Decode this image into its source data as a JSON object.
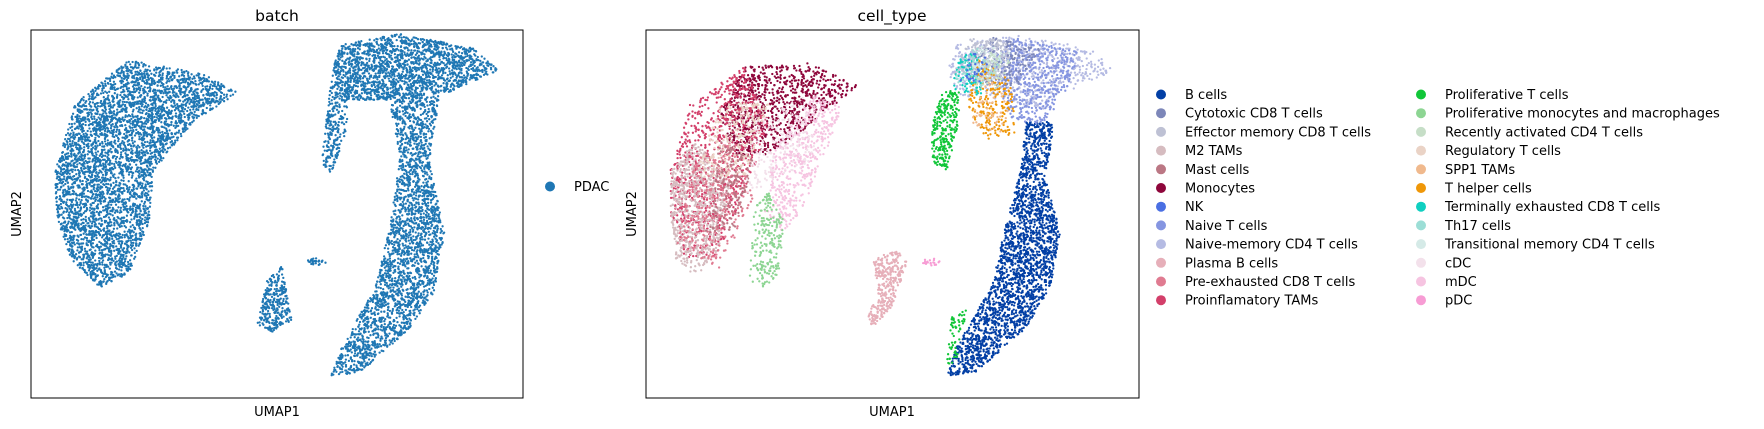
{
  "chart_data": [
    {
      "type": "scatter",
      "title": "batch",
      "xlabel": "UMAP1",
      "ylabel": "UMAP2",
      "xlim": [
        0,
        100
      ],
      "ylim": [
        0,
        100
      ],
      "grid": false,
      "ticks": "none",
      "legend_position": "right",
      "categories": [
        {
          "name": "PDAC",
          "color": "#1f77b4"
        }
      ],
      "regions": [
        {
          "category": "PDAC",
          "shape": "polygon",
          "n": 4200,
          "points": [
            [
              5,
              62
            ],
            [
              9,
              80
            ],
            [
              20,
              92
            ],
            [
              35,
              88
            ],
            [
              42,
              83
            ],
            [
              33,
              75
            ],
            [
              25,
              62
            ],
            [
              24,
              48
            ],
            [
              20,
              34
            ],
            [
              14,
              30
            ],
            [
              8,
              38
            ],
            [
              5,
              50
            ]
          ]
        },
        {
          "category": "PDAC",
          "shape": "polygon",
          "n": 1800,
          "points": [
            [
              61,
              88
            ],
            [
              63,
              96
            ],
            [
              75,
              99
            ],
            [
              90,
              95
            ],
            [
              95,
              89
            ],
            [
              85,
              83
            ],
            [
              72,
              81
            ],
            [
              64,
              81
            ]
          ]
        },
        {
          "category": "PDAC",
          "shape": "polygon",
          "n": 2500,
          "points": [
            [
              77,
              83
            ],
            [
              83,
              82
            ],
            [
              81,
              64
            ],
            [
              84,
              45
            ],
            [
              82,
              29
            ],
            [
              77,
              19
            ],
            [
              67,
              7
            ],
            [
              61,
              6
            ],
            [
              63,
              14
            ],
            [
              70,
              30
            ],
            [
              73,
              47
            ],
            [
              75,
              65
            ],
            [
              73,
              80
            ]
          ]
        },
        {
          "category": "PDAC",
          "shape": "polygon",
          "n": 260,
          "points": [
            [
              61,
              86
            ],
            [
              65,
              86
            ],
            [
              64,
              72
            ],
            [
              61,
              61
            ],
            [
              59,
              64
            ]
          ]
        },
        {
          "category": "PDAC",
          "shape": "polygon",
          "n": 300,
          "points": [
            [
              51,
              36
            ],
            [
              53,
              21
            ],
            [
              49,
              18
            ],
            [
              46,
              20
            ],
            [
              48,
              32
            ]
          ]
        },
        {
          "category": "PDAC",
          "shape": "ellipse",
          "n": 25,
          "cx": 58,
          "cy": 37,
          "rx": 2,
          "ry": 1
        }
      ]
    },
    {
      "type": "scatter",
      "title": "cell_type",
      "xlabel": "UMAP1",
      "ylabel": "UMAP2",
      "xlim": [
        0,
        100
      ],
      "ylim": [
        0,
        100
      ],
      "grid": false,
      "ticks": "none",
      "legend_position": "right",
      "legend_columns": 2,
      "categories": [
        {
          "name": "B cells",
          "color": "#023fa5"
        },
        {
          "name": "Cytotoxic CD8 T cells",
          "color": "#7d87b9"
        },
        {
          "name": "Effector memory CD8 T cells",
          "color": "#bec1d4"
        },
        {
          "name": "M2 TAMs",
          "color": "#d6bcc0"
        },
        {
          "name": "Mast cells",
          "color": "#bb7784"
        },
        {
          "name": "Monocytes",
          "color": "#8e063b"
        },
        {
          "name": "NK",
          "color": "#4a6fe3"
        },
        {
          "name": "Naive T cells",
          "color": "#8595e1"
        },
        {
          "name": "Naive-memory CD4 T cells",
          "color": "#b5bbe3"
        },
        {
          "name": "Plasma B cells",
          "color": "#e6afb9"
        },
        {
          "name": "Pre-exhausted CD8 T cells",
          "color": "#e07b91"
        },
        {
          "name": "Proinflamatory TAMs",
          "color": "#d33f6a"
        },
        {
          "name": "Proliferative T cells",
          "color": "#11c638"
        },
        {
          "name": "Proliferative monocytes and macrophages",
          "color": "#8dd593"
        },
        {
          "name": "Recently activated CD4 T cells",
          "color": "#c6dec7"
        },
        {
          "name": "Regulatory T cells",
          "color": "#ead3c6"
        },
        {
          "name": "SPP1 TAMs",
          "color": "#f0b98d"
        },
        {
          "name": "T helper cells",
          "color": "#ef9708"
        },
        {
          "name": "Terminally exhausted CD8 T cells",
          "color": "#0fcfc0"
        },
        {
          "name": "Th17 cells",
          "color": "#9cded6"
        },
        {
          "name": "Transitional memory CD4 T cells",
          "color": "#d5eae7"
        },
        {
          "name": "cDC",
          "color": "#f3e1eb"
        },
        {
          "name": "mDC",
          "color": "#f6c4e1"
        },
        {
          "name": "pDC",
          "color": "#f79cd4"
        }
      ],
      "regions": [
        {
          "category": "Monocytes",
          "shape": "polygon",
          "n": 900,
          "points": [
            [
              15,
              77
            ],
            [
              20,
              90
            ],
            [
              33,
              91
            ],
            [
              43,
              85
            ],
            [
              35,
              76
            ],
            [
              25,
              66
            ],
            [
              18,
              66
            ]
          ]
        },
        {
          "category": "Proinflamatory TAMs",
          "shape": "polygon",
          "n": 900,
          "points": [
            [
              5,
              62
            ],
            [
              9,
              80
            ],
            [
              20,
              90
            ],
            [
              25,
              75
            ],
            [
              20,
              55
            ],
            [
              14,
              38
            ],
            [
              8,
              38
            ],
            [
              5,
              50
            ]
          ]
        },
        {
          "category": "M2 TAMs",
          "shape": "polygon",
          "n": 700,
          "points": [
            [
              5,
              50
            ],
            [
              5,
              62
            ],
            [
              10,
              70
            ],
            [
              17,
              58
            ],
            [
              15,
              40
            ],
            [
              10,
              33
            ],
            [
              6,
              38
            ]
          ]
        },
        {
          "category": "Pre-exhausted CD8 T cells",
          "shape": "polygon",
          "n": 300,
          "points": [
            [
              6,
              42
            ],
            [
              10,
              65
            ],
            [
              18,
              70
            ],
            [
              22,
              55
            ],
            [
              15,
              35
            ]
          ]
        },
        {
          "category": "Regulatory T cells",
          "shape": "polygon",
          "n": 250,
          "points": [
            [
              10,
              60
            ],
            [
              15,
              80
            ],
            [
              25,
              80
            ],
            [
              20,
              60
            ]
          ]
        },
        {
          "category": "Mast cells",
          "shape": "polygon",
          "n": 150,
          "points": [
            [
              12,
              45
            ],
            [
              15,
              70
            ],
            [
              22,
              65
            ],
            [
              18,
              45
            ]
          ]
        },
        {
          "category": "mDC",
          "shape": "polygon",
          "n": 500,
          "points": [
            [
              24,
              50
            ],
            [
              26,
              68
            ],
            [
              34,
              82
            ],
            [
              40,
              80
            ],
            [
              36,
              65
            ],
            [
              32,
              52
            ],
            [
              28,
              45
            ]
          ]
        },
        {
          "category": "cDC",
          "shape": "polygon",
          "n": 200,
          "points": [
            [
              20,
              55
            ],
            [
              22,
              75
            ],
            [
              32,
              82
            ],
            [
              35,
              65
            ]
          ]
        },
        {
          "category": "Proliferative monocytes and macrophages",
          "shape": "polygon",
          "n": 220,
          "points": [
            [
              21,
              32
            ],
            [
              22,
              52
            ],
            [
              25,
              56
            ],
            [
              28,
              48
            ],
            [
              27,
              34
            ],
            [
              24,
              30
            ]
          ]
        },
        {
          "category": "Plasma B cells",
          "shape": "polygon",
          "n": 320,
          "points": [
            [
              46,
              38
            ],
            [
              51,
              40
            ],
            [
              53,
              37
            ],
            [
              50,
              25
            ],
            [
              46,
              19
            ],
            [
              45,
              22
            ],
            [
              47,
              30
            ]
          ]
        },
        {
          "category": "pDC",
          "shape": "ellipse",
          "n": 20,
          "cx": 58,
          "cy": 37,
          "rx": 2,
          "ry": 1
        },
        {
          "category": "B cells",
          "shape": "polygon",
          "n": 2300,
          "points": [
            [
              77,
              75
            ],
            [
              83,
              75
            ],
            [
              81,
              60
            ],
            [
              84,
              45
            ],
            [
              82,
              30
            ],
            [
              77,
              19
            ],
            [
              67,
              7
            ],
            [
              61,
              6
            ],
            [
              63,
              14
            ],
            [
              70,
              30
            ],
            [
              73,
              47
            ],
            [
              76,
              62
            ]
          ]
        },
        {
          "category": "Naive-memory CD4 T cells",
          "shape": "polygon",
          "n": 650,
          "points": [
            [
              61,
              88
            ],
            [
              63,
              96
            ],
            [
              75,
              99
            ],
            [
              90,
              95
            ],
            [
              95,
              89
            ],
            [
              85,
              83
            ],
            [
              80,
              78
            ],
            [
              72,
              81
            ],
            [
              64,
              82
            ]
          ]
        },
        {
          "category": "Naive T cells",
          "shape": "polygon",
          "n": 500,
          "points": [
            [
              70,
              92
            ],
            [
              75,
              98
            ],
            [
              88,
              94
            ],
            [
              85,
              82
            ],
            [
              80,
              74
            ],
            [
              74,
              76
            ],
            [
              71,
              84
            ]
          ]
        },
        {
          "category": "Cytotoxic CD8 T cells",
          "shape": "polygon",
          "n": 200,
          "points": [
            [
              65,
              90
            ],
            [
              70,
              98
            ],
            [
              80,
              95
            ],
            [
              76,
              85
            ],
            [
              70,
              84
            ]
          ]
        },
        {
          "category": "Effector memory CD8 T cells",
          "shape": "polygon",
          "n": 220,
          "points": [
            [
              62,
              88
            ],
            [
              66,
              98
            ],
            [
              75,
              97
            ],
            [
              72,
              86
            ]
          ]
        },
        {
          "category": "T helper cells",
          "shape": "polygon",
          "n": 220,
          "points": [
            [
              65,
              80
            ],
            [
              67,
              93
            ],
            [
              74,
              86
            ],
            [
              75,
              72
            ],
            [
              69,
              70
            ]
          ]
        },
        {
          "category": "SPP1 TAMs",
          "shape": "polygon",
          "n": 60,
          "points": [
            [
              66,
              74
            ],
            [
              68,
              90
            ],
            [
              74,
              80
            ],
            [
              72,
              72
            ]
          ]
        },
        {
          "category": "Terminally exhausted CD8 T cells",
          "shape": "polygon",
          "n": 80,
          "points": [
            [
              62,
              84
            ],
            [
              64,
              95
            ],
            [
              68,
              92
            ],
            [
              68,
              82
            ]
          ]
        },
        {
          "category": "Th17 cells",
          "shape": "polygon",
          "n": 60,
          "points": [
            [
              62,
              86
            ],
            [
              66,
              96
            ],
            [
              72,
              92
            ],
            [
              69,
              84
            ]
          ]
        },
        {
          "category": "Transitional memory CD4 T cells",
          "shape": "polygon",
          "n": 60,
          "points": [
            [
              64,
              86
            ],
            [
              68,
              96
            ],
            [
              74,
              94
            ],
            [
              71,
              86
            ]
          ]
        },
        {
          "category": "Recently activated CD4 T cells",
          "shape": "polygon",
          "n": 50,
          "points": [
            [
              66,
              84
            ],
            [
              70,
              94
            ],
            [
              74,
              92
            ],
            [
              72,
              84
            ]
          ]
        },
        {
          "category": "NK",
          "shape": "polygon",
          "n": 30,
          "points": [
            [
              63,
              86
            ],
            [
              66,
              94
            ],
            [
              70,
              92
            ],
            [
              68,
              86
            ]
          ]
        },
        {
          "category": "Proliferative T cells",
          "shape": "polygon",
          "n": 260,
          "points": [
            [
              60,
              83
            ],
            [
              64,
              84
            ],
            [
              63,
              72
            ],
            [
              61,
              62
            ],
            [
              58,
              64
            ],
            [
              58,
              74
            ]
          ]
        },
        {
          "category": "Proliferative T cells",
          "shape": "polygon",
          "n": 60,
          "points": [
            [
              62,
              22
            ],
            [
              65,
              24
            ],
            [
              63,
              10
            ],
            [
              61,
              9
            ]
          ]
        }
      ]
    }
  ]
}
